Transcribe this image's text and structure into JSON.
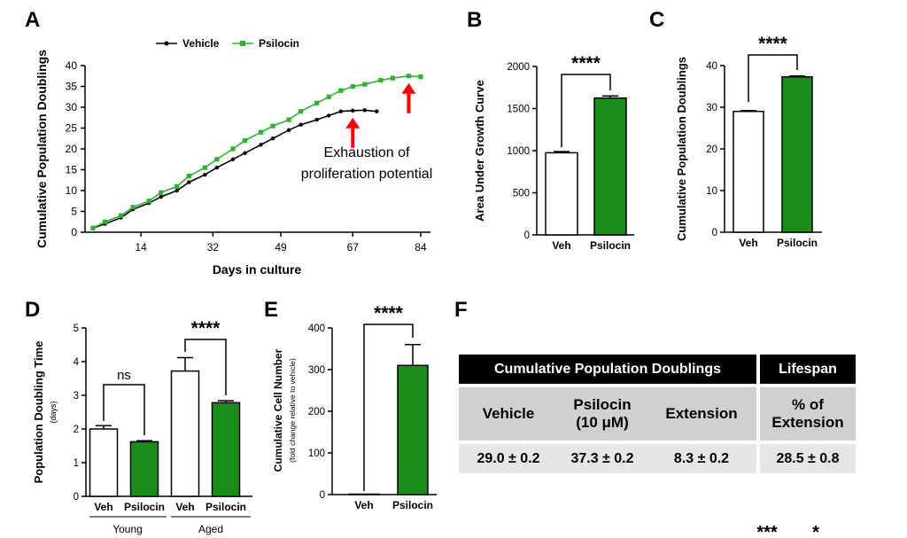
{
  "chart_data": [
    {
      "panel": "A",
      "type": "line",
      "xlabel": "Days in culture",
      "ylabel": "Cumulative Population Doublings",
      "xlim": [
        0,
        86
      ],
      "ylim": [
        0,
        40
      ],
      "xticks": [
        14,
        32,
        49,
        67,
        84
      ],
      "yticks": [
        0,
        5,
        10,
        15,
        20,
        25,
        30,
        35,
        40
      ],
      "legend": [
        "Vehicle",
        "Psilocin"
      ],
      "series": [
        {
          "name": "Vehicle",
          "color": "#000000",
          "x": [
            2,
            5,
            9,
            12,
            16,
            19,
            23,
            26,
            30,
            33,
            37,
            40,
            44,
            47,
            51,
            54,
            58,
            61,
            64,
            67,
            70,
            73
          ],
          "y": [
            1,
            2,
            3.5,
            5.5,
            7,
            8.5,
            10,
            12,
            13.8,
            15.5,
            17.5,
            19,
            21,
            22.5,
            24.5,
            25.8,
            27,
            28,
            29,
            29.2,
            29.3,
            29
          ]
        },
        {
          "name": "Psilocin",
          "color": "#2db32d",
          "x": [
            2,
            5,
            9,
            12,
            16,
            19,
            23,
            26,
            30,
            33,
            37,
            40,
            44,
            47,
            51,
            54,
            58,
            61,
            64,
            67,
            70,
            74,
            77,
            81,
            84
          ],
          "y": [
            1,
            2.5,
            4,
            6,
            7.5,
            9.5,
            11,
            13.5,
            15.5,
            17.5,
            20,
            22,
            24,
            25.5,
            27,
            29,
            31,
            32.5,
            34,
            35,
            35.5,
            36.5,
            37,
            37.5,
            37.3
          ]
        }
      ],
      "annotations": {
        "text_line1": "Exhaustion of",
        "text_line2": "proliferation potential",
        "arrows": [
          {
            "x": 67,
            "y": 29.2,
            "color": "#ff0000"
          },
          {
            "x": 81,
            "y": 37.5,
            "color": "#ff0000"
          }
        ]
      }
    },
    {
      "panel": "B",
      "type": "bar",
      "ylabel": "Area Under Growth Curve",
      "ylim": [
        0,
        2000
      ],
      "yticks": [
        0,
        500,
        1000,
        1500,
        2000
      ],
      "categories": [
        "Veh",
        "Psilocin"
      ],
      "values": [
        975,
        1625
      ],
      "errors": [
        15,
        25
      ],
      "significance": "****"
    },
    {
      "panel": "C",
      "type": "bar",
      "ylabel": "Cumulative Population Doublings",
      "ylim": [
        0,
        40
      ],
      "yticks": [
        0,
        10,
        20,
        30,
        40
      ],
      "categories": [
        "Veh",
        "Psilocin"
      ],
      "values": [
        29.0,
        37.3
      ],
      "errors": [
        0.2,
        0.2
      ],
      "significance": "****"
    },
    {
      "panel": "D",
      "type": "bar",
      "ylabel": "Population Doubling Time",
      "ylabel2": "(days)",
      "ylim": [
        0,
        5
      ],
      "yticks": [
        0,
        1,
        2,
        3,
        4,
        5
      ],
      "categories": [
        "Veh",
        "Psilocin",
        "Veh",
        "Psilocin"
      ],
      "groups": [
        "Young",
        "Aged"
      ],
      "values": [
        2.0,
        1.62,
        3.72,
        2.78
      ],
      "errors": [
        0.1,
        0.03,
        0.4,
        0.06
      ],
      "significance": [
        "ns",
        "****"
      ]
    },
    {
      "panel": "E",
      "type": "bar",
      "ylabel": "Cumulative Cell Number",
      "ylabel2": "(fold change relative to vehicle)",
      "ylim": [
        0,
        400
      ],
      "yticks": [
        0,
        100,
        200,
        300,
        400
      ],
      "categories": [
        "Veh",
        "Psilocin"
      ],
      "values": [
        1,
        310
      ],
      "errors": [
        0,
        50
      ],
      "significance": "****"
    }
  ],
  "panel_labels": {
    "A": "A",
    "B": "B",
    "C": "C",
    "D": "D",
    "E": "E",
    "F": "F"
  },
  "colors": {
    "vehicle": "#ffffff",
    "psilocin": "#1a8c1a",
    "line_psilocin": "#2db32d",
    "arrow": "#ff0000"
  },
  "table": {
    "header_main": "Cumulative Population Doublings",
    "header_side": "Lifespan",
    "cols": [
      "Vehicle",
      "Psilocin",
      "(10 μM)",
      "Extension",
      "% of",
      "Extension"
    ],
    "values": [
      "29.0 ± 0.2",
      "37.3 ± 0.2",
      "8.3 ± 0.2",
      "28.5 ± 0.8"
    ]
  },
  "footer_marks": [
    "***",
    "*"
  ]
}
